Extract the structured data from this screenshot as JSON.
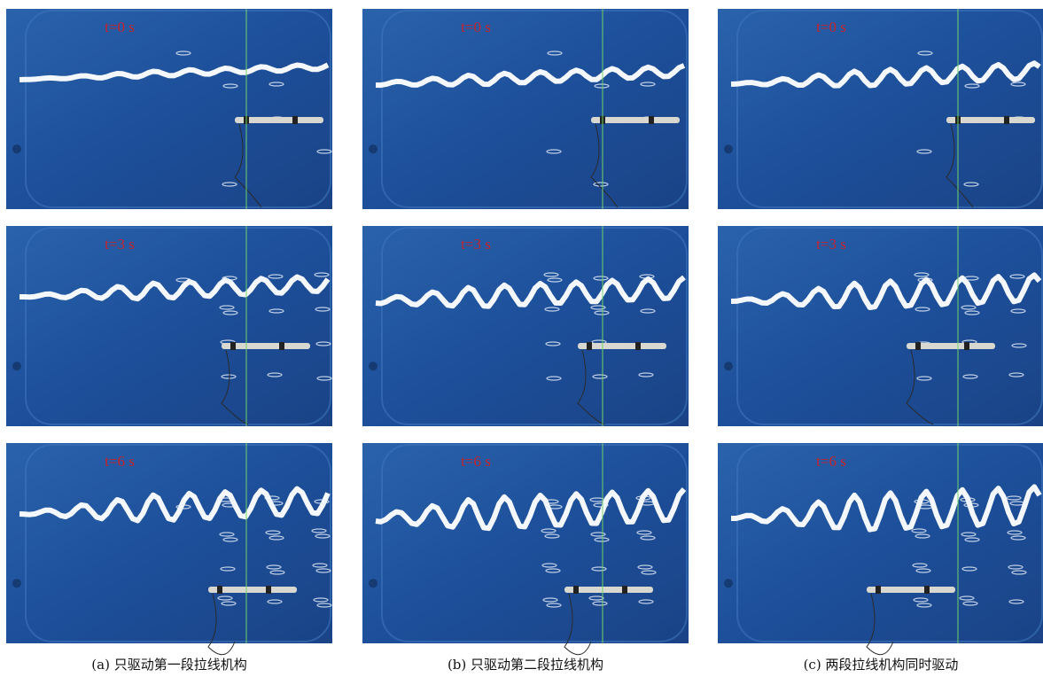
{
  "columns": [
    {
      "caption": "(a) 只驱动第一段拉线机构",
      "frames": [
        "t=0 s",
        "t=3 s",
        "t=6 s"
      ]
    },
    {
      "caption": "(b) 只驱动第二段拉线机构",
      "frames": [
        "t=0 s",
        "t=3 s",
        "t=6 s"
      ]
    },
    {
      "caption": "(c) 两段拉线机构同时驱动",
      "frames": [
        "t=0 s",
        "t=3 s",
        "t=6 s"
      ]
    }
  ]
}
